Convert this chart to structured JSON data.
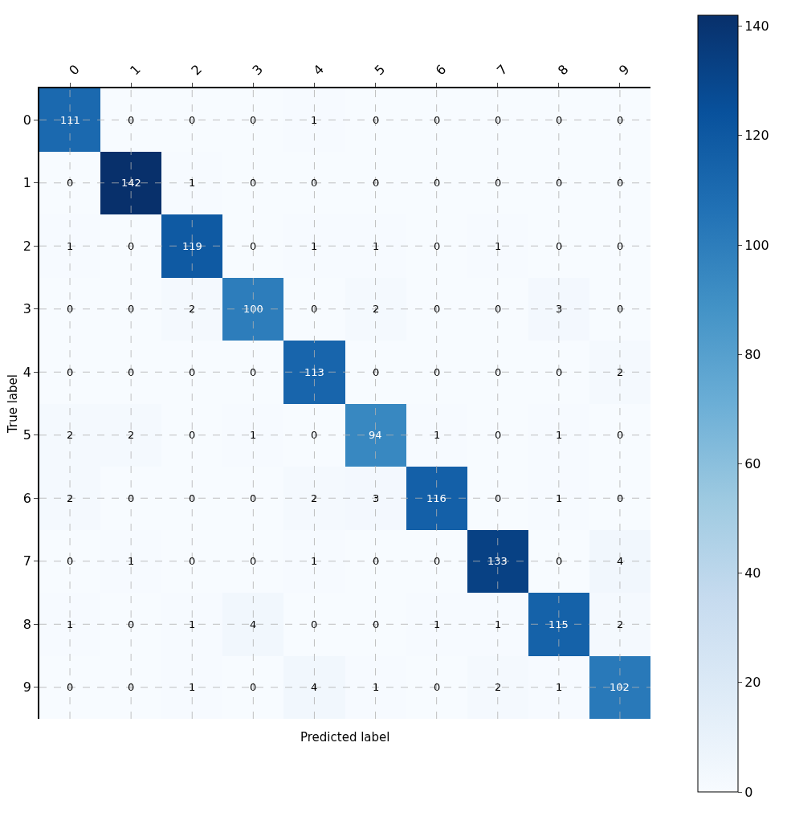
{
  "chart_data": {
    "type": "heatmap",
    "xlabel": "Predicted label",
    "ylabel": "True label",
    "categories": [
      "0",
      "1",
      "2",
      "3",
      "4",
      "5",
      "6",
      "7",
      "8",
      "9"
    ],
    "y_categories": [
      "0",
      "1",
      "2",
      "3",
      "4",
      "5",
      "6",
      "7",
      "8",
      "9"
    ],
    "cells": [
      [
        111,
        0,
        0,
        0,
        1,
        0,
        0,
        0,
        0,
        0
      ],
      [
        0,
        142,
        1,
        0,
        0,
        0,
        0,
        0,
        0,
        0
      ],
      [
        1,
        0,
        119,
        0,
        1,
        1,
        0,
        1,
        0,
        0
      ],
      [
        0,
        0,
        2,
        100,
        0,
        2,
        0,
        0,
        3,
        0
      ],
      [
        0,
        0,
        0,
        0,
        113,
        0,
        0,
        0,
        0,
        2
      ],
      [
        2,
        2,
        0,
        1,
        0,
        94,
        1,
        0,
        1,
        0
      ],
      [
        2,
        0,
        0,
        0,
        2,
        3,
        116,
        0,
        1,
        0
      ],
      [
        0,
        1,
        0,
        0,
        1,
        0,
        0,
        133,
        0,
        4
      ],
      [
        1,
        0,
        1,
        4,
        0,
        0,
        1,
        1,
        115,
        2
      ],
      [
        0,
        0,
        1,
        0,
        4,
        1,
        0,
        2,
        1,
        102
      ]
    ],
    "clim": [
      0,
      142
    ],
    "cticks": [
      0,
      20,
      40,
      60,
      80,
      100,
      120,
      140
    ],
    "data_labels": true,
    "grid": true
  }
}
